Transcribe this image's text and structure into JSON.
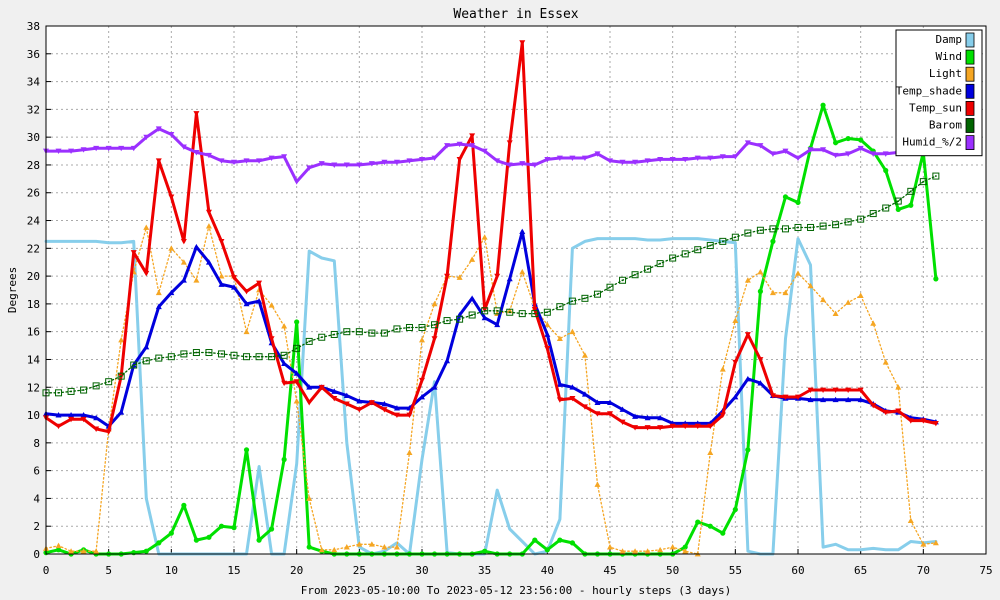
{
  "chart_data": {
    "type": "line",
    "title": "Weather in Essex",
    "xlabel": "From 2023-05-10:00 To 2023-05-12 23:56:00 - hourly steps (3 days)",
    "ylabel": "Degrees",
    "xlim": [
      0,
      75
    ],
    "ylim": [
      0,
      38
    ],
    "xticks": [
      0,
      5,
      10,
      15,
      20,
      25,
      30,
      35,
      40,
      45,
      50,
      55,
      60,
      65,
      70,
      75
    ],
    "yticks": [
      0,
      2,
      4,
      6,
      8,
      10,
      12,
      14,
      16,
      18,
      20,
      22,
      24,
      26,
      28,
      30,
      32,
      34,
      36,
      38
    ],
    "grid": true,
    "legend_position": "top-right",
    "x": [
      0,
      1,
      2,
      3,
      4,
      5,
      6,
      7,
      8,
      9,
      10,
      11,
      12,
      13,
      14,
      15,
      16,
      17,
      18,
      19,
      20,
      21,
      22,
      23,
      24,
      25,
      26,
      27,
      28,
      29,
      30,
      31,
      32,
      33,
      34,
      35,
      36,
      37,
      38,
      39,
      40,
      41,
      42,
      43,
      44,
      45,
      46,
      47,
      48,
      49,
      50,
      51,
      52,
      53,
      54,
      55,
      56,
      57,
      58,
      59,
      60,
      61,
      62,
      63,
      64,
      65,
      66,
      67,
      68,
      69,
      70,
      71
    ],
    "series": [
      {
        "name": "Damp",
        "color": "#87ceeb",
        "style": "solid",
        "marker": "none",
        "values": [
          22.5,
          22.5,
          22.5,
          22.5,
          22.5,
          22.4,
          22.4,
          22.5,
          4,
          0,
          0,
          0,
          0,
          0,
          0,
          0,
          0,
          6.3,
          0,
          0,
          6.5,
          21.8,
          21.3,
          21.1,
          8,
          0.5,
          0,
          0.2,
          0.8,
          0,
          6.8,
          12.4,
          0.1,
          0,
          0,
          0,
          4.6,
          1.8,
          0.9,
          0,
          0.2,
          2.5,
          22,
          22.5,
          22.7,
          22.7,
          22.7,
          22.7,
          22.6,
          22.6,
          22.7,
          22.7,
          22.7,
          22.6,
          22.5,
          22.4,
          0.2,
          0,
          0,
          15.5,
          22.7,
          20.8,
          0.5,
          0.7,
          0.3,
          0.3,
          0.4,
          0.3,
          0.3,
          0.9,
          0.8,
          0.9
        ]
      },
      {
        "name": "Wind",
        "color": "#00e000",
        "style": "solid",
        "marker": "circle",
        "values": [
          0.1,
          0.3,
          0,
          0.3,
          0,
          0,
          0,
          0.1,
          0.2,
          0.8,
          1.5,
          3.5,
          1,
          1.2,
          2,
          1.9,
          7.5,
          1,
          1.8,
          6.8,
          16.7,
          0.5,
          0.2,
          0,
          0,
          0,
          0,
          0,
          0,
          0,
          0,
          0,
          0,
          0,
          0,
          0.2,
          0,
          0,
          0,
          1,
          0.3,
          1,
          0.8,
          0,
          0,
          0,
          0,
          0,
          0,
          0,
          0,
          0.5,
          2.3,
          2,
          1.5,
          3.2,
          7.5,
          18.9,
          22.5,
          25.7,
          25.3,
          29.2,
          32.3,
          29.6,
          29.9,
          29.8,
          29,
          27.6,
          24.8,
          25.1,
          28.9,
          19.8
        ]
      },
      {
        "name": "Light",
        "color": "#f5a623",
        "style": "dotted",
        "marker": "triangle-up",
        "values": [
          0.4,
          0.6,
          0.2,
          0.2,
          0.2,
          9,
          15.4,
          20.3,
          23.5,
          18.8,
          22,
          21,
          19.7,
          23.6,
          20,
          20,
          16,
          19,
          17.9,
          16.4,
          11,
          4,
          0.3,
          0.3,
          0.5,
          0.7,
          0.7,
          0.5,
          0.5,
          7.3,
          15.4,
          18,
          20,
          19.9,
          21.2,
          22.8,
          17.3,
          17.5,
          20.3,
          17.7,
          16.5,
          15.5,
          16,
          14.3,
          5,
          0.5,
          0.2,
          0.2,
          0.2,
          0.3,
          0.5,
          0.2,
          0,
          7.3,
          13.3,
          16.8,
          19.7,
          20.3,
          18.8,
          18.8,
          20.2,
          19.3,
          18.3,
          17.3,
          18.1,
          18.6,
          16.6,
          13.8,
          12,
          2.4,
          0.7,
          0.8
        ]
      },
      {
        "name": "Temp_shade",
        "color": "#0000dd",
        "style": "solid",
        "marker": "triangle-up",
        "values": [
          10.1,
          10,
          10,
          10,
          9.8,
          9.2,
          10.2,
          13.6,
          14.9,
          17.8,
          18.8,
          19.7,
          22.1,
          21,
          19.4,
          19.2,
          18,
          18.2,
          15.2,
          13.7,
          13,
          12,
          12,
          11.7,
          11.4,
          11,
          10.9,
          10.8,
          10.5,
          10.5,
          11.3,
          12,
          13.9,
          17.2,
          18.4,
          17,
          16.5,
          19.8,
          23.2,
          18,
          15.8,
          12.2,
          12,
          11.5,
          10.9,
          10.9,
          10.4,
          9.9,
          9.8,
          9.8,
          9.4,
          9.4,
          9.4,
          9.4,
          10.3,
          11.3,
          12.6,
          12.3,
          11.4,
          11.2,
          11.2,
          11.1,
          11.1,
          11.1,
          11.1,
          11.1,
          10.8,
          10.3,
          10.2,
          9.8,
          9.7,
          9.5
        ]
      },
      {
        "name": "Temp_sun",
        "color": "#ee0000",
        "style": "solid",
        "marker": "triangle-down",
        "values": [
          9.8,
          9.2,
          9.7,
          9.7,
          9,
          8.8,
          12.8,
          21.7,
          20.2,
          28.3,
          25.7,
          22.5,
          31.7,
          24.6,
          22.5,
          19.9,
          18.9,
          19.5,
          15.5,
          12.3,
          12.4,
          10.9,
          12,
          11.2,
          10.8,
          10.4,
          10.9,
          10.4,
          10,
          10,
          12.5,
          15.5,
          20,
          28.4,
          30.1,
          17.6,
          20,
          29.6,
          36.8,
          17.6,
          14.8,
          11.1,
          11.2,
          10.6,
          10.1,
          10.1,
          9.5,
          9.1,
          9.1,
          9.1,
          9.2,
          9.2,
          9.2,
          9.2,
          10,
          13.8,
          15.8,
          14,
          11.4,
          11.3,
          11.3,
          11.8,
          11.8,
          11.8,
          11.8,
          11.8,
          10.7,
          10.2,
          10.3,
          9.6,
          9.6,
          9.4
        ]
      },
      {
        "name": "Barom",
        "color": "#006400",
        "style": "dotted",
        "marker": "square",
        "values": [
          11.6,
          11.6,
          11.7,
          11.8,
          12.1,
          12.4,
          12.8,
          13.6,
          13.9,
          14.1,
          14.2,
          14.4,
          14.5,
          14.5,
          14.4,
          14.3,
          14.2,
          14.2,
          14.2,
          14.3,
          14.8,
          15.3,
          15.6,
          15.8,
          16,
          16,
          15.9,
          15.9,
          16.2,
          16.3,
          16.3,
          16.5,
          16.8,
          16.9,
          17.2,
          17.5,
          17.5,
          17.4,
          17.3,
          17.3,
          17.4,
          17.8,
          18.2,
          18.4,
          18.7,
          19.2,
          19.7,
          20.1,
          20.5,
          20.9,
          21.3,
          21.6,
          21.9,
          22.2,
          22.5,
          22.8,
          23.1,
          23.3,
          23.4,
          23.4,
          23.5,
          23.5,
          23.6,
          23.7,
          23.9,
          24.1,
          24.5,
          24.9,
          25.4,
          26.1,
          26.8,
          27.2
        ]
      },
      {
        "name": "Humid_%/2",
        "color": "#9b30ff",
        "style": "solid",
        "marker": "triangle-down",
        "values": [
          29,
          29,
          29,
          29.1,
          29.2,
          29.2,
          29.2,
          29.2,
          30,
          30.6,
          30.2,
          29.3,
          28.9,
          28.7,
          28.3,
          28.2,
          28.3,
          28.3,
          28.5,
          28.6,
          26.8,
          27.8,
          28.1,
          28,
          28,
          28,
          28.1,
          28.2,
          28.2,
          28.3,
          28.4,
          28.5,
          29.4,
          29.5,
          29.4,
          29,
          28.3,
          28,
          28.1,
          28,
          28.4,
          28.5,
          28.5,
          28.5,
          28.8,
          28.3,
          28.2,
          28.2,
          28.3,
          28.4,
          28.4,
          28.4,
          28.5,
          28.5,
          28.6,
          28.6,
          29.6,
          29.4,
          28.8,
          29,
          28.5,
          29.1,
          29.1,
          28.7,
          28.8,
          29.2,
          28.8,
          28.8,
          28.9,
          29,
          29,
          29
        ]
      }
    ]
  },
  "colors": {
    "background": "#f0f0f0",
    "plot_background": "#ffffff",
    "grid": "#aaaaaa"
  }
}
